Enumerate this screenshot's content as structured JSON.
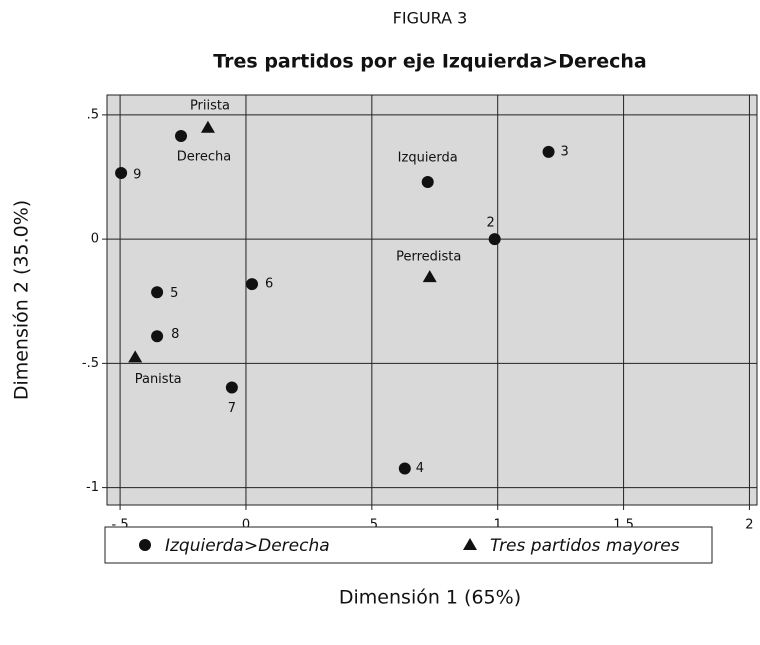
{
  "chart_data": {
    "type": "scatter",
    "figure_label": "FIGURA 3",
    "title": "Tres partidos por eje Izquierda>Derecha",
    "x_label": "Dimensión 1 (65%)",
    "y_label": "Dimensión 2 (35.0%)",
    "xlim": [
      -0.552,
      2.03
    ],
    "ylim": [
      -1.07,
      0.58
    ],
    "xticks": [
      {
        "value": -0.5,
        "label": "-.5"
      },
      0,
      {
        "value": 0.5,
        "label": ".5"
      },
      1,
      {
        "value": 1.5,
        "label": "1.5"
      },
      2
    ],
    "yticks": [
      {
        "value": 0.5,
        "label": ".5"
      },
      0,
      {
        "value": -0.5,
        "label": "-.5"
      },
      {
        "value": -1,
        "label": "-1"
      }
    ],
    "grid": true,
    "legend_position": "bottom",
    "series": [
      {
        "name": "Izquierda>Derecha",
        "marker": "circle",
        "color": "#111111",
        "labels": [
          "Derecha",
          "9",
          "Izquierda",
          "3",
          "2",
          "6",
          "5",
          "8",
          "7",
          "4"
        ],
        "x": [
          -0.258,
          -0.496,
          0.722,
          1.202,
          0.988,
          0.024,
          -0.353,
          -0.353,
          -0.056,
          0.631
        ],
        "values": [
          0.415,
          0.266,
          0.23,
          0.351,
          0,
          -0.181,
          -0.214,
          -0.391,
          -0.597,
          -0.923
        ]
      },
      {
        "name": "Tres partidos mayores",
        "marker": "triangle",
        "color": "#111111",
        "labels": [
          "Priista",
          "Perredista",
          "Panista"
        ],
        "x": [
          -0.151,
          0.73,
          -0.44
        ],
        "values": [
          0.448,
          -0.153,
          -0.476
        ]
      }
    ]
  }
}
